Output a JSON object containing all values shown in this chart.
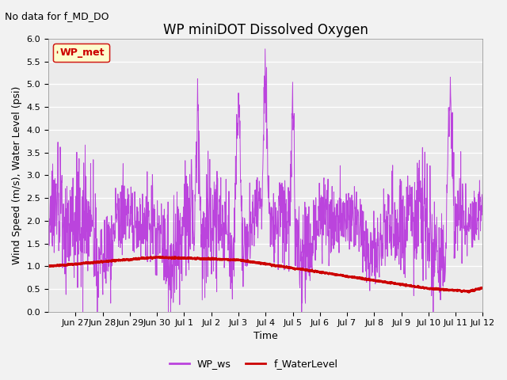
{
  "title": "WP miniDOT Dissolved Oxygen",
  "annotation": "No data for f_MD_DO",
  "xlabel": "Time",
  "ylabel": "Wind Speed (m/s), Water Level (psi)",
  "ylim": [
    0.0,
    6.0
  ],
  "yticks": [
    0.0,
    0.5,
    1.0,
    1.5,
    2.0,
    2.5,
    3.0,
    3.5,
    4.0,
    4.5,
    5.0,
    5.5,
    6.0
  ],
  "xtick_labels": [
    "Jun 27",
    "Jun 28",
    "Jun 29",
    "Jun 30",
    "Jul 1",
    "Jul 2",
    "Jul 3",
    "Jul 4",
    "Jul 5",
    "Jul 6",
    "Jul 7",
    "Jul 8",
    "Jul 9",
    "Jul 10",
    "Jul 11",
    "Jul 12"
  ],
  "legend_box_label": "WP_met",
  "legend_box_color": "#cc0000",
  "legend_box_bg": "#ffffcc",
  "line1_color": "#bb44dd",
  "line2_color": "#cc0000",
  "line1_label": "WP_ws",
  "line2_label": "f_WaterLevel",
  "plot_bg_color": "#ebebeb",
  "fig_bg_color": "#f2f2f2",
  "title_fontsize": 12,
  "label_fontsize": 9,
  "tick_fontsize": 8,
  "annot_fontsize": 9
}
